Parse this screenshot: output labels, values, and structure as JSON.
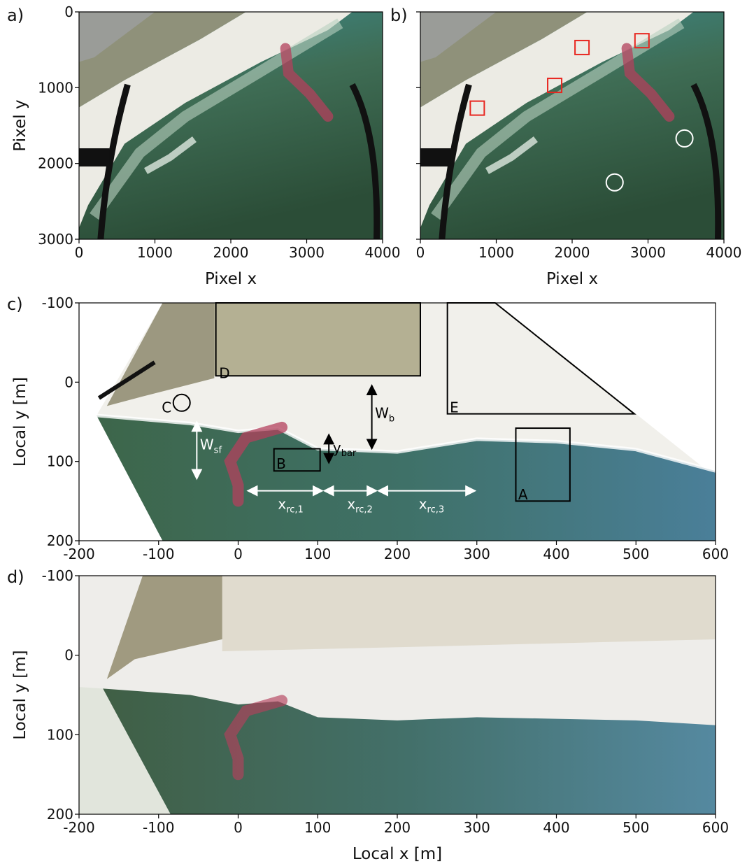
{
  "panels": [
    {
      "label": "a)",
      "xlabel": "Pixel x",
      "ylabel": "Pixel y",
      "xlim": [
        0,
        4000
      ],
      "ylim": [
        0,
        3000
      ],
      "y_inverted": true,
      "xticks": [
        0,
        1000,
        2000,
        3000,
        4000
      ],
      "yticks": [
        0,
        1000,
        2000,
        3000
      ],
      "ytick_labels": true,
      "xtick_labels": true
    },
    {
      "label": "b)",
      "xlabel": "Pixel x",
      "xlim": [
        0,
        4000
      ],
      "ylim": [
        0,
        3000
      ],
      "y_inverted": true,
      "xticks": [
        0,
        1000,
        2000,
        3000,
        4000
      ],
      "yticks": [
        0,
        1000,
        2000,
        3000
      ],
      "ytick_labels": false,
      "xtick_labels": true
    },
    {
      "label": "c)",
      "ylabel": "Local y [m]",
      "xlim": [
        -200,
        600
      ],
      "ylim": [
        -100,
        200
      ],
      "y_inverted": true,
      "xticks": [
        -200,
        -100,
        0,
        100,
        200,
        300,
        400,
        500,
        600
      ],
      "yticks": [
        -100,
        0,
        100,
        200
      ],
      "ytick_labels": true,
      "xtick_labels": true,
      "annotations": [
        {
          "text": "D"
        },
        {
          "text": "E"
        },
        {
          "text": "C"
        },
        {
          "text": "B"
        },
        {
          "text": "A"
        },
        {
          "main": "W",
          "sub": "b"
        },
        {
          "main": "W",
          "sub": "sf"
        },
        {
          "main": "y",
          "sub": "bar"
        },
        {
          "main": "x",
          "sub": "rc,1"
        },
        {
          "main": "x",
          "sub": "rc,2"
        },
        {
          "main": "x",
          "sub": "rc,3"
        }
      ]
    },
    {
      "label": "d)",
      "xlabel": "Local x [m]",
      "ylabel": "Local y [m]",
      "xlim": [
        -200,
        600
      ],
      "ylim": [
        -100,
        200
      ],
      "y_inverted": true,
      "xticks": [
        -200,
        -100,
        0,
        100,
        200,
        300,
        400,
        500,
        600
      ],
      "yticks": [
        -100,
        0,
        100,
        200
      ],
      "ytick_labels": true,
      "xtick_labels": true
    }
  ]
}
